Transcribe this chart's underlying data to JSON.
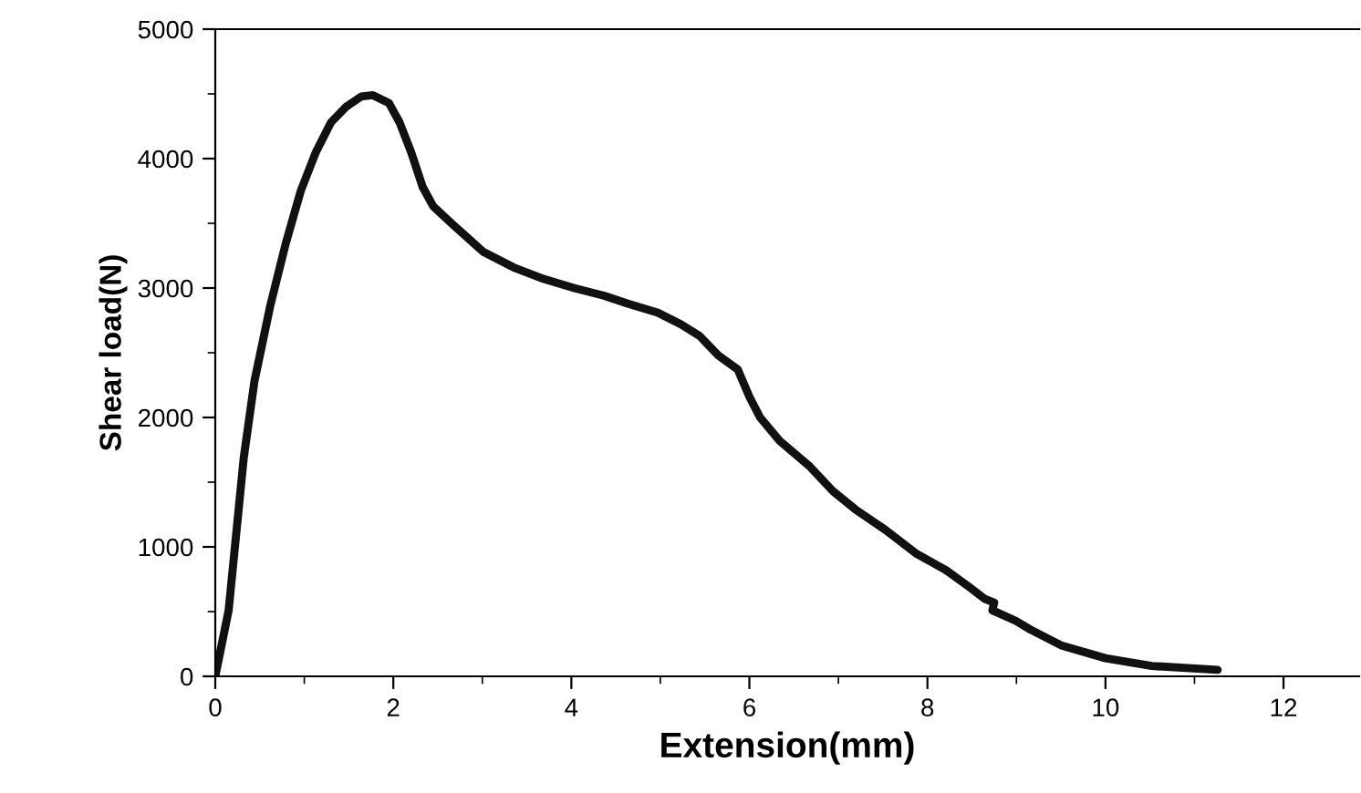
{
  "chart_data": {
    "type": "line",
    "xlabel": "Extension(mm)",
    "ylabel": "Shear load(N)",
    "xlim": [
      0,
      12.85
    ],
    "ylim": [
      0,
      5000
    ],
    "xticks": [
      0,
      2,
      4,
      6,
      8,
      10,
      12
    ],
    "yticks": [
      0,
      1000,
      2000,
      3000,
      4000,
      5000
    ],
    "grid": false,
    "marker": "none",
    "line_style": "solid",
    "series": [
      {
        "color": "#111111",
        "x": [
          0,
          0.15,
          0.32,
          0.44,
          0.62,
          0.79,
          0.96,
          1.13,
          1.3,
          1.47,
          1.64,
          1.77,
          1.95,
          2.07,
          2.2,
          2.33,
          2.45,
          2.67,
          3.01,
          3.35,
          3.69,
          4.03,
          4.37,
          4.63,
          4.97,
          5.23,
          5.44,
          5.65,
          5.87,
          6.0,
          6.12,
          6.34,
          6.68,
          6.94,
          7.19,
          7.53,
          7.87,
          8.21,
          8.47,
          8.64,
          8.75,
          8.73,
          8.99,
          9.16,
          9.5,
          10.0,
          10.52,
          11.26
        ],
        "values": [
          0,
          510,
          1690,
          2280,
          2870,
          3340,
          3750,
          4050,
          4280,
          4400,
          4480,
          4490,
          4430,
          4280,
          4050,
          3780,
          3630,
          3490,
          3280,
          3160,
          3070,
          3000,
          2940,
          2880,
          2810,
          2720,
          2630,
          2480,
          2370,
          2160,
          2000,
          1820,
          1620,
          1430,
          1290,
          1130,
          950,
          820,
          690,
          600,
          570,
          510,
          430,
          360,
          240,
          140,
          80,
          50
        ]
      }
    ]
  }
}
